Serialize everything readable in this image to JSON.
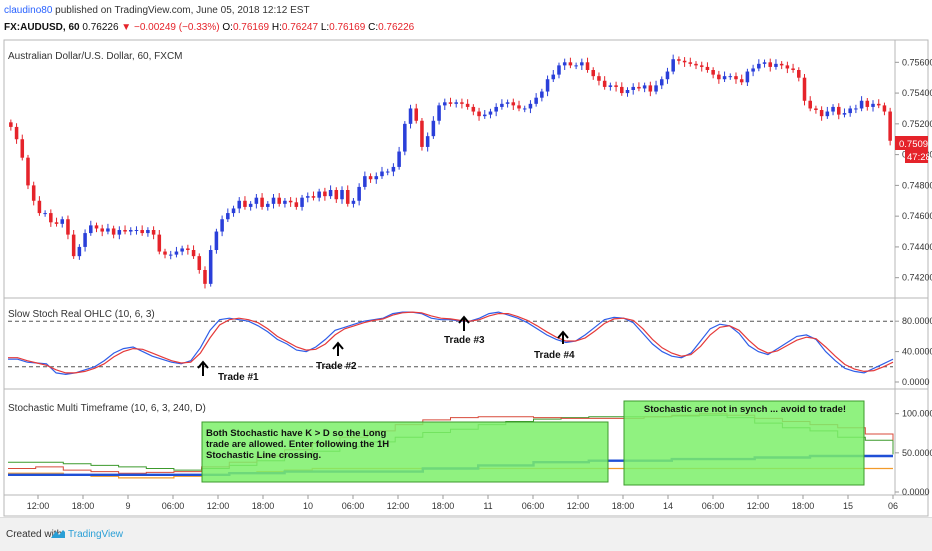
{
  "header": {
    "author": "claudino80",
    "published_text": "published on TradingView.com, June 05, 2018 12:12 EST",
    "symbol_interval": "FX:AUDUSD, 60",
    "last": "0.76226",
    "change": "▼ −0.00249 (−0.33%)",
    "o_label": "O:",
    "o_value": "0.76169",
    "h_label": "H:",
    "h_value": "0.76247",
    "l_label": "L:",
    "l_value": "0.76169",
    "c_label": "C:",
    "c_value": "0.76226"
  },
  "footer": {
    "created_with": "Created with",
    "brand": "TradingView",
    "logo_icon": "tradingview-logo-icon"
  },
  "colors": {
    "up": "#2a3fd9",
    "down": "#e5232a",
    "stoch_k": "#2f5ee8",
    "stoch_d": "#e53a3a",
    "mtf_green": "#3c9a2c",
    "mtf_red": "#d84a3a",
    "mtf_orange": "#f29b2a",
    "mtf_blue": "#1f4fd6",
    "box_fill": "#7cf06a",
    "price_label_bg": "#e5232a"
  },
  "chart_data": [
    {
      "type": "candlestick",
      "title": "Australian Dollar/U.S. Dollar, 60, FXCM",
      "y_ticks": [
        "0.75600",
        "0.75400",
        "0.75200",
        "0.75000",
        "0.74800",
        "0.74600",
        "0.74400",
        "0.74200"
      ],
      "ylim": [
        0.7412,
        0.7568
      ],
      "last_price_label": "0.75093",
      "countdown_label": "47:28",
      "x_ticks": [
        "12:00",
        "18:00",
        "9",
        "06:00",
        "12:00",
        "18:00",
        "10",
        "06:00",
        "12:00",
        "18:00",
        "11",
        "06:00",
        "12:00",
        "18:00",
        "14",
        "06:00",
        "12:00",
        "18:00",
        "15",
        "06"
      ],
      "closes": [
        0.7518,
        0.751,
        0.7498,
        0.748,
        0.747,
        0.7462,
        0.7462,
        0.7456,
        0.7455,
        0.7458,
        0.7448,
        0.7434,
        0.744,
        0.7449,
        0.7454,
        0.7452,
        0.745,
        0.7452,
        0.7448,
        0.7451,
        0.745,
        0.7451,
        0.7451,
        0.7449,
        0.7451,
        0.7448,
        0.7437,
        0.7435,
        0.7435,
        0.7437,
        0.7439,
        0.7438,
        0.7434,
        0.7425,
        0.7416,
        0.7438,
        0.745,
        0.7458,
        0.7462,
        0.7465,
        0.747,
        0.7466,
        0.7468,
        0.7472,
        0.7466,
        0.7468,
        0.7472,
        0.7468,
        0.747,
        0.7469,
        0.7466,
        0.7472,
        0.7473,
        0.7472,
        0.7476,
        0.7473,
        0.7477,
        0.7471,
        0.7477,
        0.7468,
        0.747,
        0.7479,
        0.7486,
        0.7484,
        0.7486,
        0.7489,
        0.7489,
        0.7492,
        0.7502,
        0.752,
        0.753,
        0.7522,
        0.7505,
        0.7512,
        0.7522,
        0.7532,
        0.7534,
        0.7533,
        0.7534,
        0.7533,
        0.7531,
        0.7528,
        0.7525,
        0.7526,
        0.7528,
        0.7531,
        0.7533,
        0.7534,
        0.7532,
        0.753,
        0.753,
        0.7533,
        0.7537,
        0.7541,
        0.7549,
        0.7552,
        0.7558,
        0.756,
        0.7558,
        0.7558,
        0.756,
        0.7555,
        0.7551,
        0.7548,
        0.7544,
        0.7545,
        0.7544,
        0.754,
        0.7542,
        0.7544,
        0.7543,
        0.7545,
        0.7541,
        0.7545,
        0.7549,
        0.7554,
        0.7562,
        0.7561,
        0.756,
        0.7559,
        0.7558,
        0.7557,
        0.7555,
        0.7552,
        0.7549,
        0.7551,
        0.7551,
        0.7549,
        0.7547,
        0.7554,
        0.7556,
        0.7559,
        0.756,
        0.7557,
        0.7559,
        0.7558,
        0.7556,
        0.7555,
        0.755,
        0.7535,
        0.753,
        0.7529,
        0.7525,
        0.7528,
        0.7531,
        0.7526,
        0.7527,
        0.753,
        0.753,
        0.7535,
        0.7531,
        0.7533,
        0.7532,
        0.7528,
        0.7509
      ],
      "annotations": []
    },
    {
      "type": "line",
      "title": "Slow Stoch Real OHLC (10, 6, 3)",
      "y_ticks": [
        "80.0000",
        "40.0000",
        "0.0000"
      ],
      "ylim": [
        0,
        100
      ],
      "levels": [
        80,
        20
      ],
      "series": [
        {
          "name": "K",
          "values": [
            30,
            30,
            26,
            25,
            24,
            12,
            10,
            12,
            16,
            20,
            28,
            38,
            44,
            46,
            40,
            34,
            30,
            26,
            24,
            28,
            45,
            68,
            82,
            84,
            82,
            80,
            74,
            66,
            56,
            50,
            42,
            40,
            46,
            56,
            68,
            72,
            76,
            80,
            82,
            84,
            90,
            92,
            92,
            90,
            84,
            82,
            82,
            80,
            80,
            84,
            90,
            92,
            88,
            84,
            78,
            70,
            62,
            56,
            52,
            54,
            62,
            72,
            82,
            85,
            84,
            78,
            64,
            50,
            40,
            34,
            32,
            38,
            54,
            70,
            76,
            74,
            64,
            48,
            40,
            36,
            44,
            52,
            60,
            62,
            56,
            40,
            28,
            18,
            14,
            12,
            18,
            24,
            30
          ]
        },
        {
          "name": "D",
          "values": [
            32,
            32,
            28,
            25,
            22,
            16,
            12,
            12,
            14,
            18,
            24,
            33,
            40,
            44,
            43,
            38,
            33,
            28,
            25,
            26,
            38,
            58,
            75,
            82,
            84,
            82,
            78,
            70,
            60,
            53,
            46,
            42,
            43,
            50,
            62,
            70,
            74,
            78,
            81,
            83,
            88,
            91,
            92,
            91,
            87,
            84,
            83,
            81,
            80,
            82,
            87,
            90,
            90,
            86,
            81,
            74,
            66,
            59,
            54,
            54,
            58,
            67,
            77,
            83,
            84,
            81,
            70,
            56,
            45,
            38,
            34,
            36,
            47,
            62,
            72,
            74,
            68,
            55,
            44,
            38,
            41,
            48,
            55,
            59,
            57,
            46,
            34,
            23,
            17,
            14,
            15,
            20,
            26
          ]
        }
      ],
      "annotations": [
        "Trade #1",
        "Trade #2",
        "Trade #3",
        "Trade #4"
      ]
    },
    {
      "type": "line",
      "title": "Stochastic Multi Timeframe (10, 6, 3, 240, D)",
      "y_ticks": [
        "100.0000",
        "50.0000",
        "0.0000"
      ],
      "ylim": [
        0,
        120
      ],
      "series": [
        {
          "name": "green",
          "values": [
            38,
            38,
            36,
            34,
            32,
            30,
            28,
            30,
            34,
            40,
            46,
            52,
            58,
            64,
            70,
            76,
            80,
            86,
            90,
            93,
            95,
            96,
            96,
            96,
            97,
            98,
            95,
            88,
            82,
            78,
            70,
            66,
            48
          ]
        },
        {
          "name": "red",
          "values": [
            30,
            32,
            28,
            26,
            24,
            25,
            26,
            32,
            38,
            46,
            54,
            62,
            70,
            78,
            86,
            92,
            95,
            96,
            96,
            95,
            94,
            94,
            94,
            96,
            98,
            100,
            98,
            94,
            90,
            86,
            82,
            74,
            66
          ]
        },
        {
          "name": "orange",
          "values": [
            24,
            24,
            22,
            20,
            18,
            18,
            20,
            22,
            24,
            26,
            28,
            30,
            30,
            30,
            30,
            30,
            30,
            30,
            30,
            30,
            30,
            30,
            30,
            30,
            30,
            30,
            30,
            30,
            30,
            30,
            30,
            30,
            30
          ]
        },
        {
          "name": "blue",
          "values": [
            22,
            22,
            22,
            22,
            22,
            22,
            22,
            22,
            24,
            24,
            26,
            26,
            26,
            26,
            26,
            30,
            30,
            34,
            34,
            38,
            38,
            40,
            40,
            40,
            42,
            42,
            42,
            44,
            44,
            46,
            46,
            46,
            46
          ]
        }
      ],
      "annotations": [
        "Both Stochastic have K > D so the Long trade are allowed. Enter following the 1H Stochastic Line crossing.",
        "Stochastic are not in synch ... avoid to trade!"
      ]
    }
  ]
}
